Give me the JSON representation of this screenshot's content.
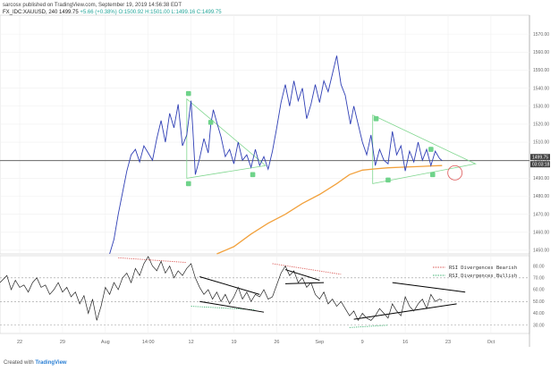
{
  "header": {
    "published": "sarcosx published on TradingView.com, September 19, 2019 14:56:38 EDT",
    "symbol": "FX_IDC:XAUUSD, 240",
    "last": "1499.75",
    "change": "+5.66 (+0.38%)",
    "ohlc": "O:1500.92 H:1501.00 L:1499.16 C:1499.75"
  },
  "footer": {
    "created_with": "Created with",
    "brand": "TradingView"
  },
  "colors": {
    "price": "#2f3fb5",
    "ma": "#f2a13c",
    "triangle": "#7fd68e",
    "point_marker": "#6fd38a",
    "rsi": "#222222",
    "bearish_div": "#d9534f",
    "bullish_div": "#3cb371",
    "current_line": "#555555",
    "circle": "#e06666",
    "tag_bg": "#444444"
  },
  "chart_data": [
    {
      "type": "line",
      "panel": "price",
      "y_ticks": [
        1450,
        1460,
        1470,
        1480,
        1490,
        1500,
        1510,
        1520,
        1530,
        1540,
        1550,
        1560,
        1570
      ],
      "ylim": [
        1448,
        1578
      ],
      "x_ticks": [
        "22",
        "29",
        "Aug",
        "14:00",
        "12",
        "19",
        "26",
        "Sep",
        "9",
        "16",
        "23",
        "Oct"
      ],
      "x_tick_pos": [
        0,
        5,
        10,
        15,
        20,
        25,
        30,
        35,
        40,
        45,
        50,
        55
      ],
      "xlim": [
        -2.3,
        59.5
      ],
      "price_tags": [
        "1499.75",
        "03:03:18"
      ],
      "series": [
        {
          "role": "price",
          "x": [
            10.5,
            11.0,
            11.5,
            12.0,
            12.5,
            13.0,
            13.5,
            14.0,
            14.5,
            15.0,
            15.5,
            16.0,
            16.5,
            17.0,
            17.5,
            18.0,
            18.5,
            19.0,
            19.5,
            20.0,
            20.2,
            20.5,
            21.0,
            21.5,
            22.0,
            22.3,
            22.6,
            23.0,
            23.5,
            24.0,
            24.5,
            25.0,
            25.5,
            26.0,
            26.5,
            27.0,
            27.5,
            28.0,
            28.5,
            29.0,
            29.5,
            30.0,
            30.5,
            31.0,
            31.5,
            32.0,
            32.5,
            33.0,
            33.5,
            34.0,
            34.5,
            35.0,
            35.5,
            36.0,
            36.5,
            37.0,
            37.5,
            38.0,
            38.3,
            38.6,
            39.0,
            39.5,
            40.0,
            40.5,
            41.0,
            41.5,
            42.0,
            42.5,
            43.0,
            43.5,
            44.0,
            44.5,
            45.0,
            45.5,
            46.0,
            46.5,
            47.0,
            47.5,
            48.0,
            48.5,
            49.0,
            49.3
          ],
          "y": [
            1448,
            1456,
            1470,
            1482,
            1494,
            1503,
            1506,
            1499,
            1508,
            1504,
            1500,
            1512,
            1522,
            1510,
            1526,
            1518,
            1531,
            1508,
            1514,
            1533,
            1518,
            1492,
            1501,
            1512,
            1504,
            1520,
            1528,
            1521,
            1513,
            1502,
            1506,
            1498,
            1510,
            1500,
            1503,
            1496,
            1506,
            1497,
            1502,
            1495,
            1505,
            1518,
            1532,
            1542,
            1530,
            1544,
            1533,
            1540,
            1523,
            1531,
            1542,
            1532,
            1544,
            1538,
            1548,
            1558,
            1542,
            1536,
            1528,
            1520,
            1530,
            1520,
            1510,
            1503,
            1514,
            1497,
            1506,
            1500,
            1498,
            1516,
            1503,
            1508,
            1494,
            1505,
            1499,
            1510,
            1500,
            1506,
            1497,
            1505,
            1501,
            1499.75
          ]
        },
        {
          "role": "moving_average",
          "x": [
            23.0,
            25.0,
            27.0,
            29.0,
            31.0,
            33.0,
            35.0,
            37.0,
            38.5,
            40.0,
            41.5,
            43.0,
            45.0,
            47.0,
            48.0,
            49.3
          ],
          "y": [
            1448,
            1452,
            1459,
            1465,
            1470,
            1476,
            1481,
            1487,
            1492,
            1494.5,
            1495.2,
            1495.8,
            1496.2,
            1496.6,
            1496.8,
            1497
          ]
        }
      ],
      "annotations": {
        "triangle_1": {
          "top": [
            19.5,
            1534
          ],
          "bottom": [
            19.5,
            1490
          ],
          "apex": [
            28.7,
            1497
          ]
        },
        "triangle_2": {
          "top": [
            41.2,
            1525
          ],
          "bottom": [
            41.2,
            1487
          ],
          "apex": [
            53.2,
            1498
          ]
        },
        "points_1": [
          [
            19.7,
            1537
          ],
          [
            22.3,
            1521
          ],
          [
            19.7,
            1487
          ],
          [
            27.2,
            1492
          ]
        ],
        "points_2": [
          [
            41.6,
            1523
          ],
          [
            43.0,
            1489
          ],
          [
            48.0,
            1506
          ],
          [
            48.2,
            1492
          ]
        ],
        "circle": [
          50.8,
          1493
        ],
        "current_price": 1499.75
      }
    },
    {
      "type": "line",
      "panel": "rsi",
      "y_ticks": [
        30,
        40,
        50,
        60,
        70,
        80
      ],
      "ylim": [
        23,
        88
      ],
      "levels": [
        70,
        50,
        30
      ],
      "legend": [
        "RSI Divergences Bearish",
        "RSI Divergences Bullish"
      ],
      "series": [
        {
          "role": "rsi",
          "x": [
            -2.3,
            -1.5,
            -1.0,
            -0.5,
            0.0,
            0.5,
            1.0,
            1.5,
            2.0,
            2.5,
            3.0,
            3.5,
            4.0,
            4.5,
            5.0,
            5.5,
            6.0,
            6.5,
            7.0,
            7.5,
            8.0,
            8.5,
            9.0,
            9.5,
            10.0,
            10.5,
            11.0,
            11.5,
            12.0,
            12.5,
            13.0,
            13.5,
            14.0,
            14.5,
            15.0,
            15.5,
            16.0,
            16.5,
            17.0,
            17.5,
            18.0,
            18.5,
            19.0,
            19.5,
            20.0,
            20.5,
            21.0,
            21.5,
            22.0,
            22.5,
            23.0,
            23.5,
            24.0,
            24.5,
            25.0,
            25.5,
            26.0,
            26.5,
            27.0,
            27.5,
            28.0,
            28.5,
            29.0,
            29.5,
            30.0,
            30.5,
            31.0,
            31.5,
            32.0,
            32.5,
            33.0,
            33.5,
            34.0,
            34.5,
            35.0,
            35.5,
            36.0,
            36.5,
            37.0,
            37.5,
            38.0,
            38.5,
            39.0,
            39.5,
            40.0,
            40.5,
            41.0,
            41.5,
            42.0,
            42.5,
            43.0,
            43.5,
            44.0,
            44.5,
            45.0,
            45.5,
            46.0,
            46.5,
            47.0,
            47.5,
            48.0,
            48.5,
            49.0,
            49.3
          ],
          "y": [
            66,
            72,
            60,
            68,
            62,
            64,
            58,
            66,
            70,
            62,
            64,
            56,
            60,
            66,
            58,
            62,
            54,
            58,
            48,
            55,
            40,
            52,
            34,
            46,
            62,
            56,
            66,
            60,
            70,
            74,
            66,
            78,
            72,
            82,
            88,
            80,
            76,
            84,
            74,
            80,
            70,
            76,
            72,
            78,
            82,
            70,
            62,
            56,
            60,
            52,
            58,
            50,
            56,
            48,
            54,
            62,
            52,
            58,
            50,
            56,
            54,
            60,
            52,
            54,
            64,
            74,
            80,
            72,
            76,
            66,
            70,
            62,
            66,
            56,
            52,
            58,
            48,
            52,
            46,
            50,
            44,
            38,
            42,
            34,
            40,
            36,
            34,
            38,
            44,
            40,
            36,
            48,
            42,
            38,
            54,
            46,
            42,
            48,
            52,
            44,
            56,
            50,
            52,
            51
          ]
        }
      ],
      "annotations": {
        "bearish_dotted": [
          [
            [
              11.5,
              87
            ],
            [
              19.5,
              83
            ]
          ],
          [
            [
              29.5,
              82
            ],
            [
              37.5,
              73
            ]
          ]
        ],
        "bullish_dotted": [
          [
            [
              20.0,
              46
            ],
            [
              27.5,
              43
            ]
          ],
          [
            [
              38.5,
              28
            ],
            [
              43.0,
              30
            ]
          ]
        ],
        "wedges": [
          [
            [
              [
                21.0,
                71
              ],
              [
                28.0,
                56
              ]
            ],
            [
              [
                21.0,
                50
              ],
              [
                28.5,
                41
              ]
            ]
          ],
          [
            [
              [
                31.0,
                77
              ],
              [
                35.0,
                68
              ]
            ],
            [
              [
                31.0,
                65
              ],
              [
                35.5,
                66
              ]
            ]
          ],
          [
            [
              [
                43.5,
                66
              ],
              [
                52.0,
                58
              ]
            ],
            [
              [
                39.0,
                35
              ],
              [
                51.0,
                48
              ]
            ]
          ]
        ]
      }
    }
  ]
}
